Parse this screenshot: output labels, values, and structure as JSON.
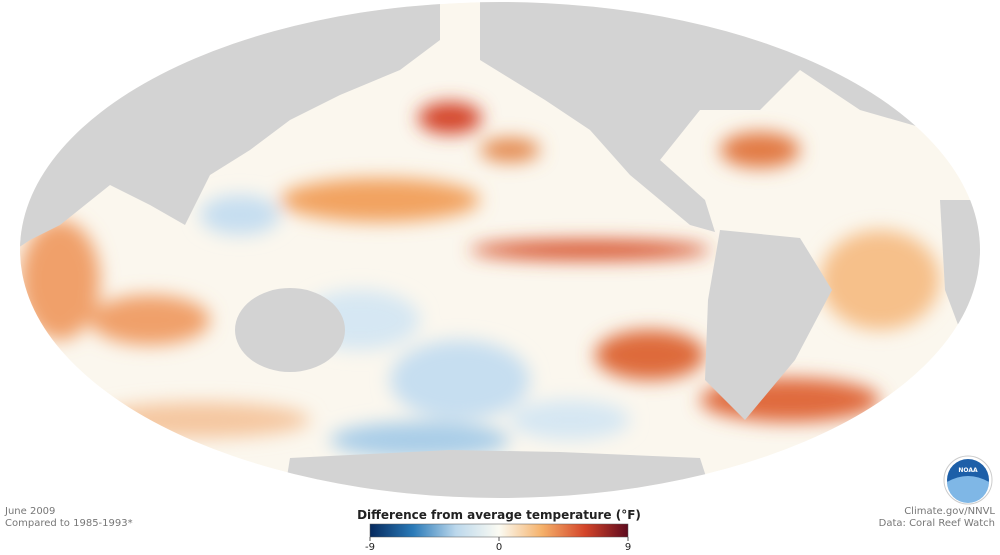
{
  "header": {
    "date": "June 2009",
    "baseline": "Compared to 1985-1993*"
  },
  "legend": {
    "title": "Difference from average temperature (°F)",
    "min": -9,
    "max": 9,
    "ticks": [
      -9,
      0,
      9
    ],
    "colors": [
      "#062a5e",
      "#2a7ab8",
      "#bcd8ec",
      "#fbfbf3",
      "#f5b16a",
      "#d4452a",
      "#5e0a1e"
    ]
  },
  "credits": {
    "source": "Climate.gov/NNVL",
    "data": "Data: Coral Reef Watch"
  },
  "logo": {
    "text": "NOAA"
  }
}
